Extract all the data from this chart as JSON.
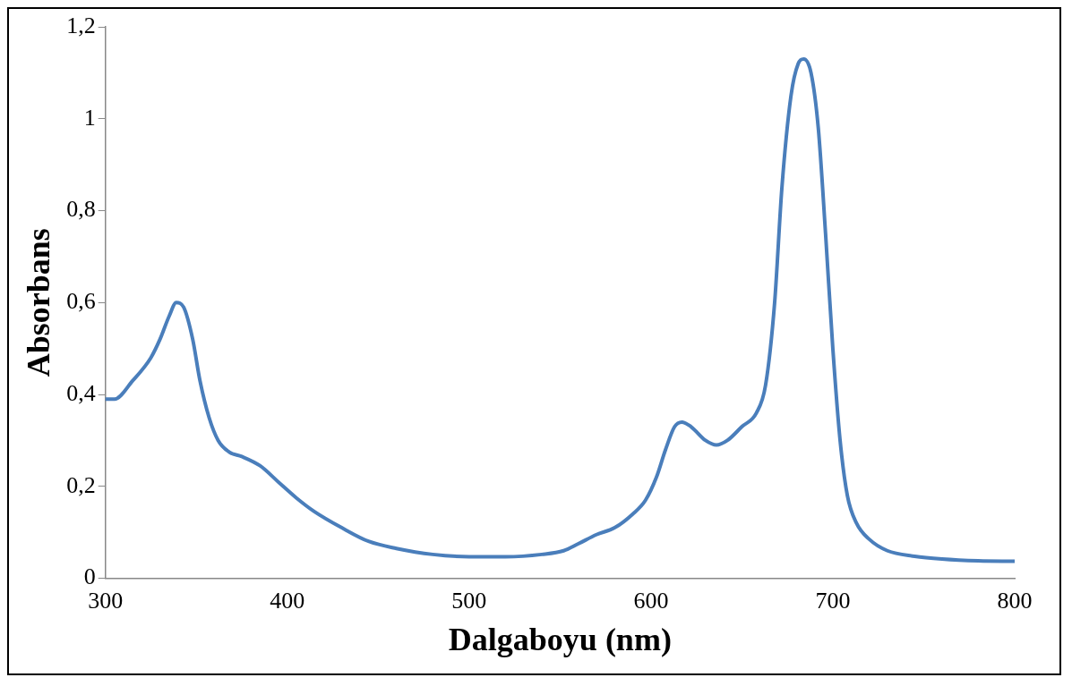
{
  "chart_data": {
    "type": "line",
    "xlabel": "Dalgaboyu (nm)",
    "ylabel": "Absorbans",
    "x": [
      300,
      305,
      315,
      325,
      330,
      335,
      339,
      343,
      348,
      352,
      357,
      362,
      368,
      375,
      385,
      395,
      405,
      415,
      430,
      445,
      460,
      480,
      500,
      520,
      540,
      552,
      560,
      570,
      580,
      590,
      597,
      603,
      608,
      613,
      617,
      622,
      630,
      636,
      642,
      650,
      658,
      663,
      668,
      672,
      677,
      681,
      684,
      688,
      692,
      696,
      700,
      704,
      708,
      713,
      720,
      730,
      745,
      760,
      780,
      800
    ],
    "series": [
      {
        "color": "#4a7ebb",
        "values": [
          0.39,
          0.39,
          0.43,
          0.48,
          0.52,
          0.57,
          0.6,
          0.59,
          0.52,
          0.43,
          0.35,
          0.3,
          0.275,
          0.265,
          0.245,
          0.21,
          0.175,
          0.145,
          0.11,
          0.08,
          0.065,
          0.052,
          0.047,
          0.047,
          0.052,
          0.06,
          0.075,
          0.095,
          0.11,
          0.14,
          0.17,
          0.22,
          0.28,
          0.33,
          0.34,
          0.33,
          0.3,
          0.29,
          0.3,
          0.33,
          0.36,
          0.42,
          0.6,
          0.85,
          1.05,
          1.12,
          1.13,
          1.1,
          0.98,
          0.75,
          0.5,
          0.3,
          0.18,
          0.12,
          0.085,
          0.06,
          0.048,
          0.042,
          0.038,
          0.037
        ]
      }
    ],
    "xlim": [
      300,
      800
    ],
    "xticks": [
      300,
      400,
      500,
      600,
      700,
      800
    ],
    "ylim": [
      0,
      1.2
    ],
    "yticks": [
      0,
      {
        "value": 0.2,
        "label": "0,2"
      },
      {
        "value": 0.4,
        "label": "0,4"
      },
      {
        "value": 0.6,
        "label": "0,6"
      },
      {
        "value": 0.8,
        "label": "0,8"
      },
      1,
      {
        "value": 1.2,
        "label": "1,2"
      }
    ],
    "grid": false,
    "legend": false,
    "marker": "none",
    "line_style": "solid"
  }
}
